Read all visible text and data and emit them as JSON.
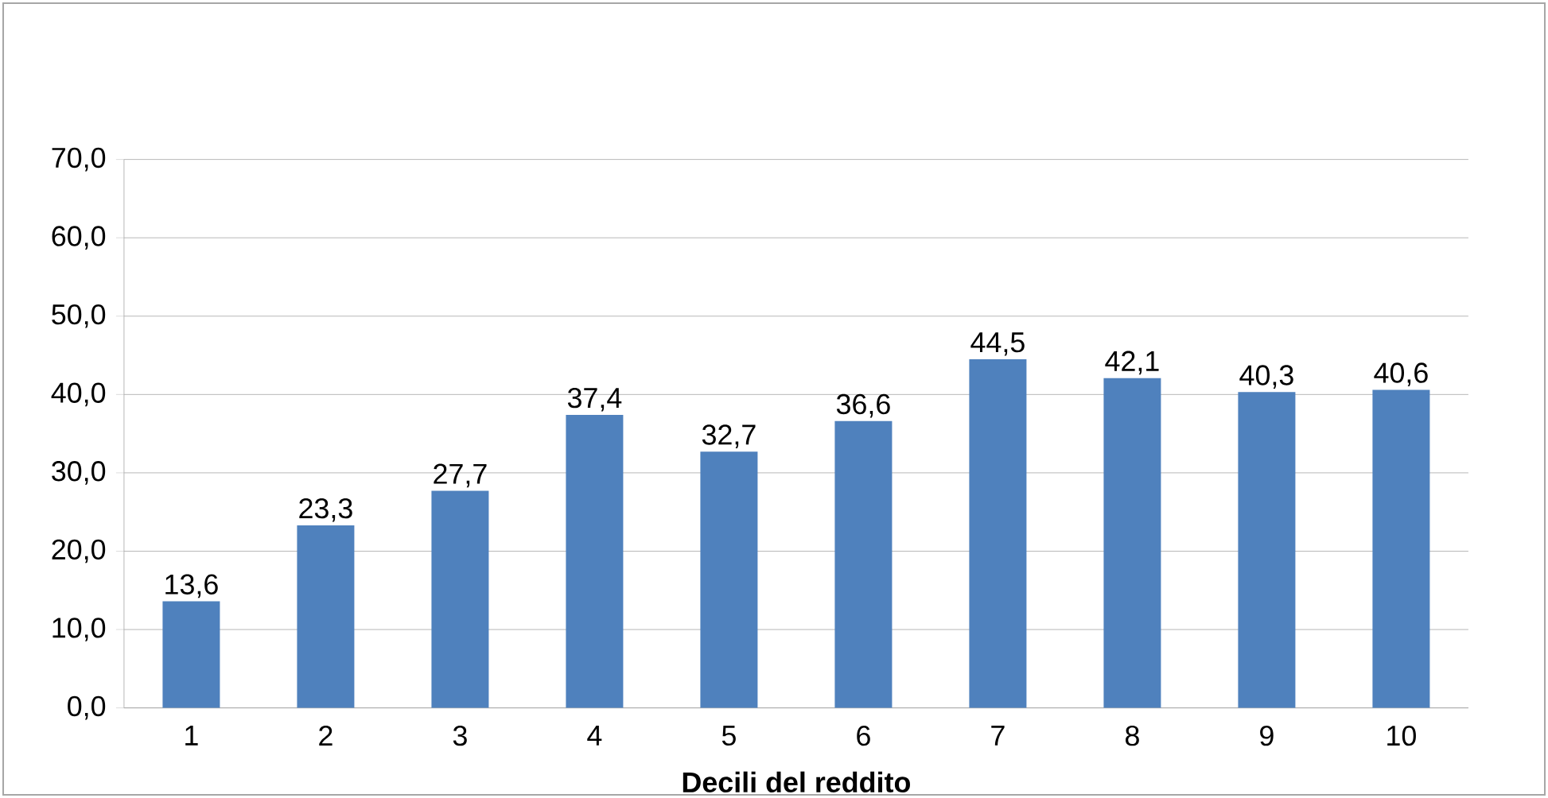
{
  "chart_data": {
    "type": "bar",
    "xlabel": "Decili del reddito",
    "categories": [
      "1",
      "2",
      "3",
      "4",
      "5",
      "6",
      "7",
      "8",
      "9",
      "10"
    ],
    "values": [
      13.6,
      23.3,
      27.7,
      37.4,
      32.7,
      36.6,
      44.5,
      42.1,
      40.3,
      40.6
    ],
    "value_labels": [
      "13,6",
      "23,3",
      "27,7",
      "37,4",
      "32,7",
      "36,6",
      "44,5",
      "42,1",
      "40,3",
      "40,6"
    ],
    "color": "#4f81bd",
    "ylim": [
      0,
      70
    ],
    "yticks": [
      {
        "value": 0,
        "label": "0,0"
      },
      {
        "value": 10,
        "label": "10,0"
      },
      {
        "value": 20,
        "label": "20,0"
      },
      {
        "value": 30,
        "label": "30,0"
      },
      {
        "value": 40,
        "label": "40,0"
      },
      {
        "value": 50,
        "label": "50,0"
      },
      {
        "value": 60,
        "label": "60,0"
      },
      {
        "value": 70,
        "label": "70,0"
      }
    ],
    "grid": "y"
  }
}
